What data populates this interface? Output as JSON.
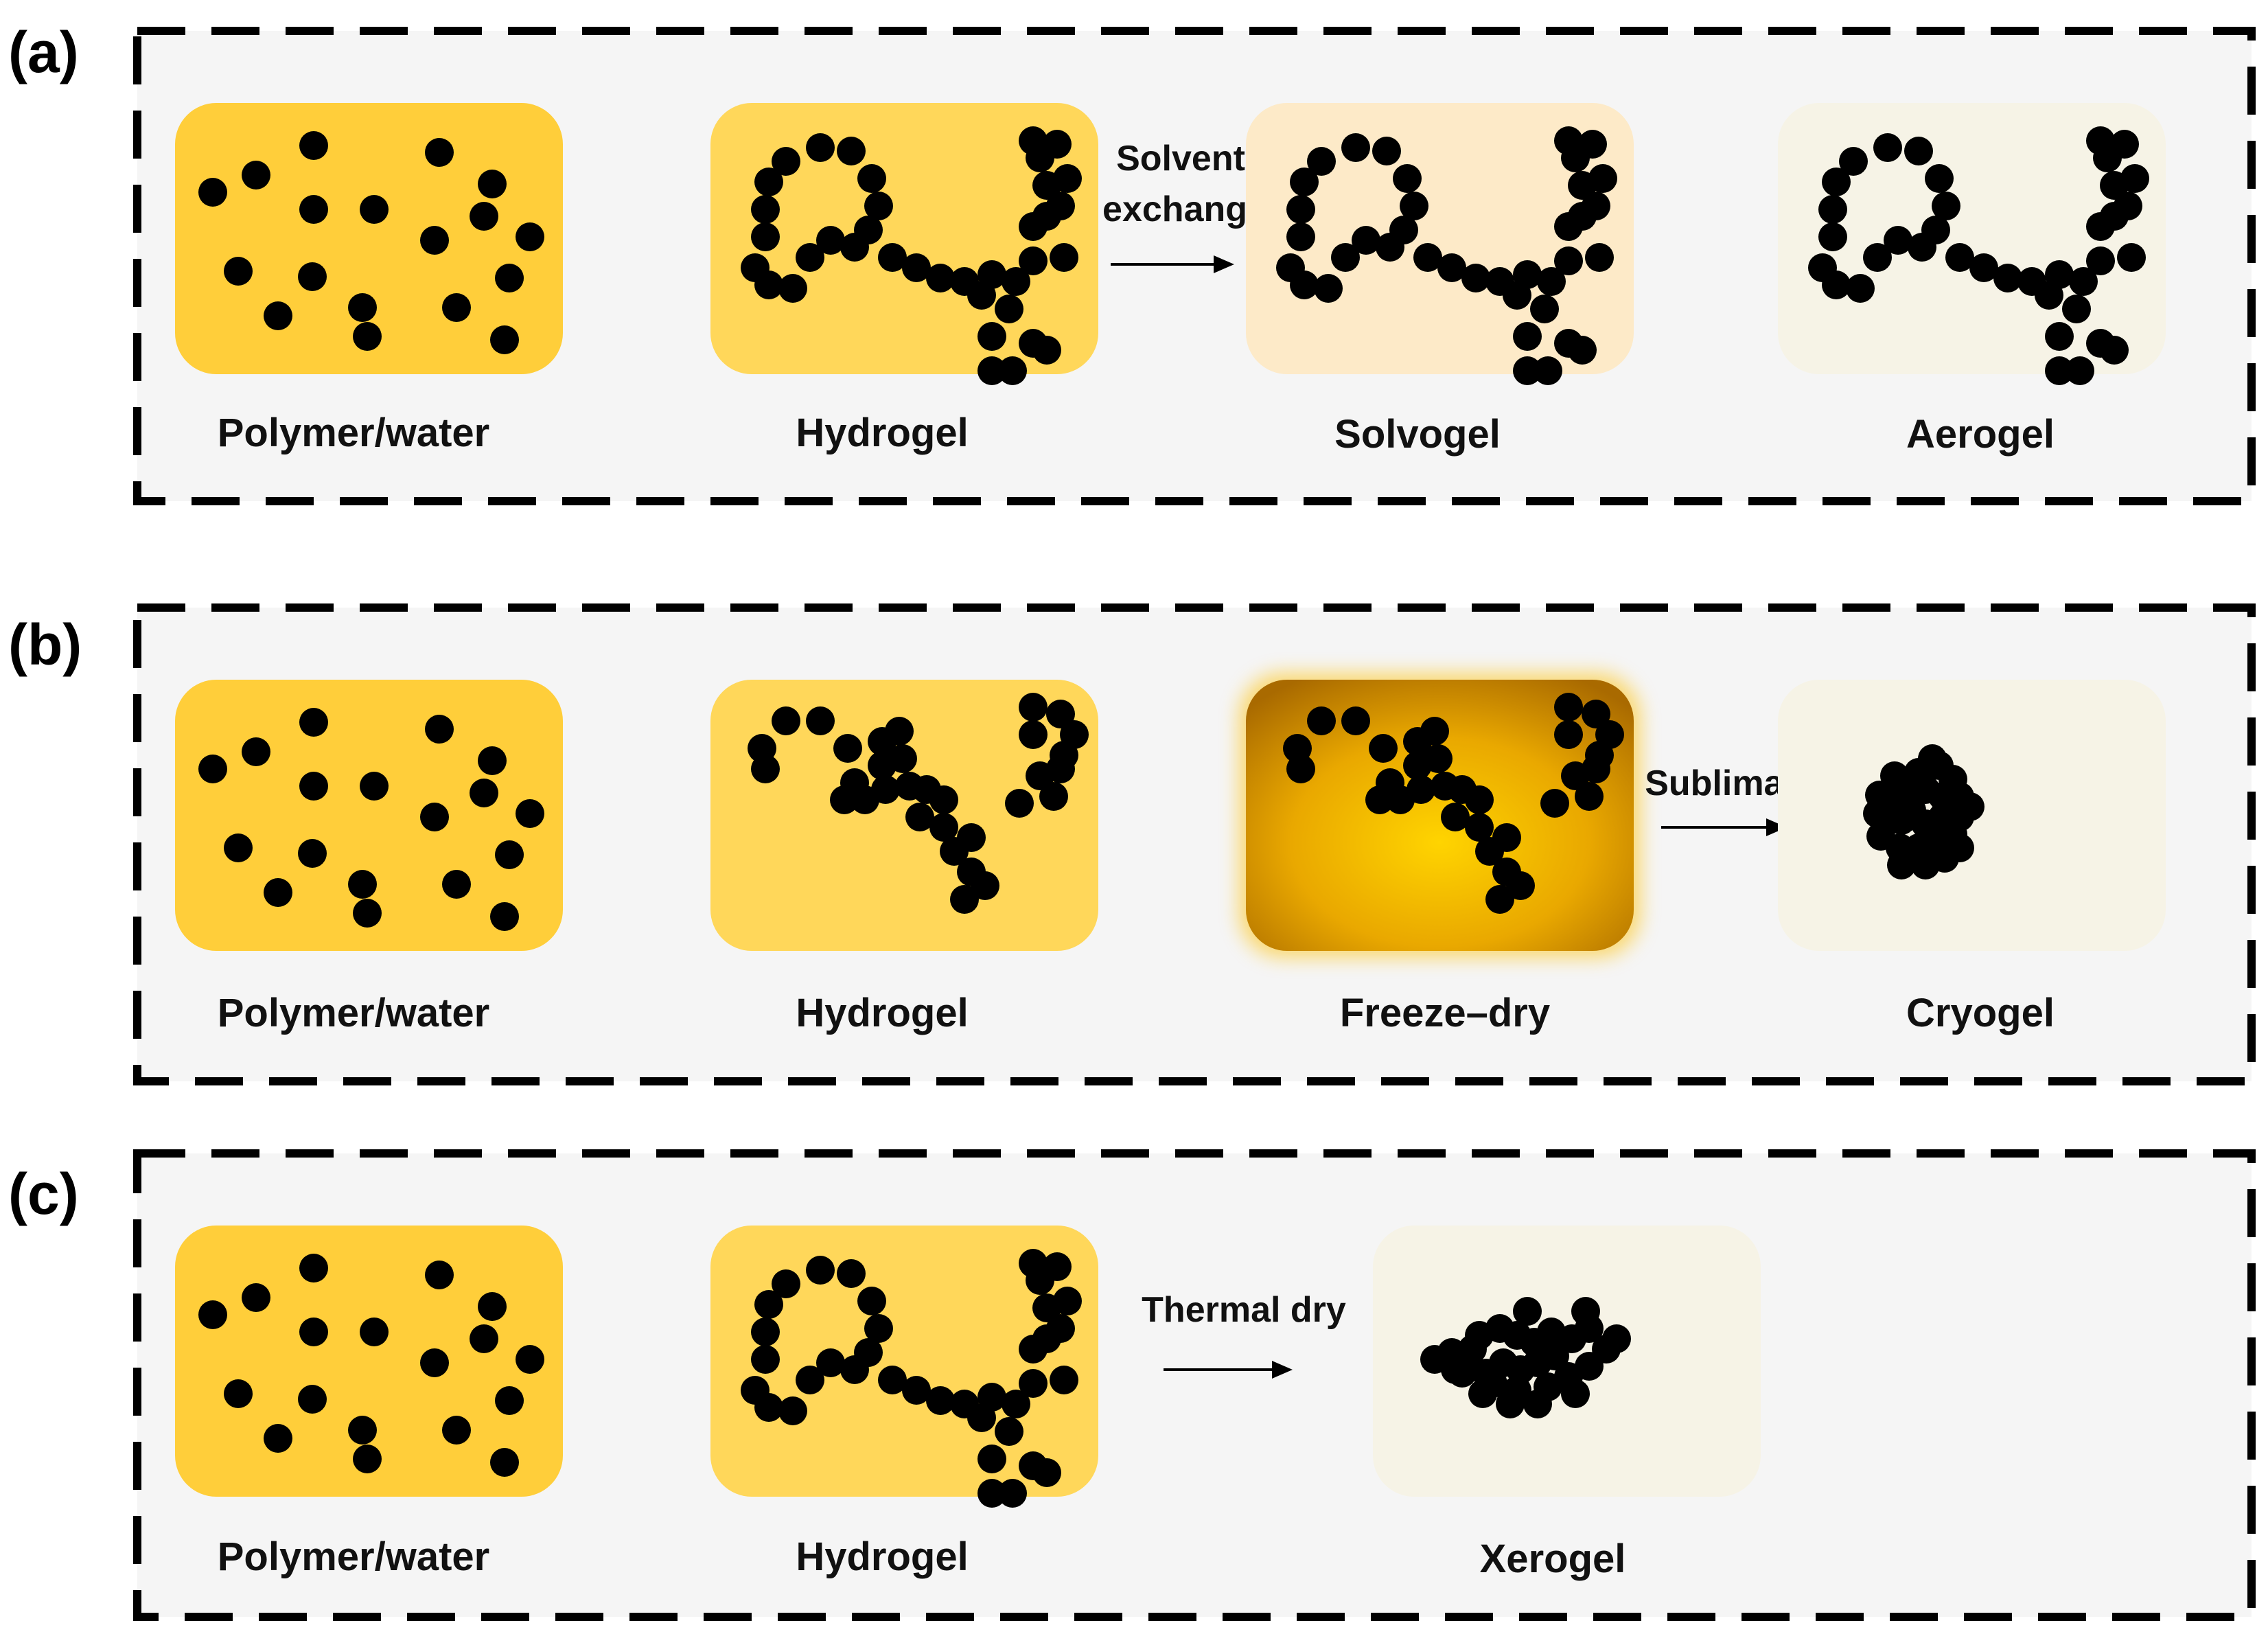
{
  "panels": [
    {
      "letter": "(a)",
      "stages": [
        {
          "label": "Polymer/water",
          "state": "polymer",
          "fill": "#FFCE3A"
        },
        {
          "label": "Hydrogel",
          "state": "network",
          "fill": "#FFD75A"
        },
        {
          "label": "Solvogel",
          "state": "network",
          "fill": "#FDEAC8"
        },
        {
          "label": "Aerogel",
          "state": "network",
          "fill": "#F6F3E6"
        }
      ],
      "process": {
        "line1": "Solvent",
        "line2": "exchange"
      }
    },
    {
      "letter": "(b)",
      "stages": [
        {
          "label": "Polymer/water",
          "state": "polymer",
          "fill": "#FFCE3A"
        },
        {
          "label": "Hydrogel",
          "state": "network",
          "fill": "#FFD75A"
        },
        {
          "label": "Freeze–dry",
          "state": "network",
          "fill": "#E2A000"
        },
        {
          "label": "Cryogel",
          "state": "cluster",
          "fill": "#F6F3E6"
        }
      ],
      "process": {
        "line1": "Sublimation"
      }
    },
    {
      "letter": "(c)",
      "stages": [
        {
          "label": "Polymer/water",
          "state": "polymer",
          "fill": "#FFCE3A"
        },
        {
          "label": "Hydrogel",
          "state": "network",
          "fill": "#FFD75A"
        },
        {
          "label": "Xerogel",
          "state": "collapsed",
          "fill": "#F6F3E6"
        }
      ],
      "process": {
        "line1": "Thermal dry"
      }
    }
  ],
  "colors": {
    "panel_background": "#F5F5F5",
    "dashed_border": "#000000",
    "particle": "#000000"
  }
}
